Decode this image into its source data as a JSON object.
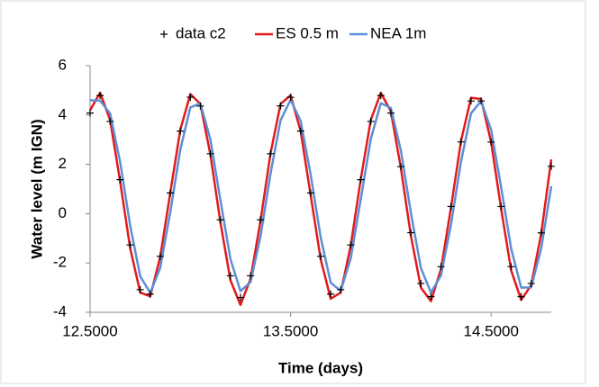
{
  "chart_data": {
    "type": "line",
    "x_label": "Time (days)",
    "y_label": "Water level (m IGN)",
    "xlim": [
      12.5,
      14.8
    ],
    "xticks": [
      {
        "value": 12.5,
        "label": "12.5000"
      },
      {
        "value": 13.5,
        "label": "13.5000"
      },
      {
        "value": 14.5,
        "label": "14.5000"
      }
    ],
    "ylim": [
      -4,
      6
    ],
    "yticks": [
      -4,
      -2,
      0,
      2,
      4,
      6
    ],
    "grid": false,
    "legend": "top",
    "x": [
      12.5,
      12.55,
      12.6,
      12.65,
      12.7,
      12.75,
      12.8,
      12.85,
      12.9,
      12.95,
      13,
      13.05,
      13.1,
      13.15,
      13.2,
      13.25,
      13.3,
      13.35,
      13.4,
      13.45,
      13.5,
      13.55,
      13.6,
      13.65,
      13.7,
      13.75,
      13.8,
      13.85,
      13.9,
      13.95,
      14,
      14.05,
      14.1,
      14.15,
      14.2,
      14.25,
      14.3,
      14.35,
      14.4,
      14.45,
      14.5,
      14.55,
      14.6,
      14.65,
      14.7,
      14.75,
      14.8
    ],
    "series": [
      {
        "name": "data c2",
        "color": "#000000",
        "style": "marker",
        "values": [
          4.08,
          4.79,
          3.74,
          1.38,
          -1.27,
          -3.08,
          -3.26,
          -1.73,
          0.84,
          3.35,
          4.72,
          4.36,
          2.43,
          -0.25,
          -2.52,
          -3.4,
          -2.52,
          -0.25,
          2.43,
          4.37,
          4.72,
          3.35,
          0.84,
          -1.73,
          -3.26,
          -3.08,
          -1.27,
          1.38,
          3.74,
          4.79,
          4.08,
          1.91,
          -0.77,
          -2.83,
          -3.36,
          -2.15,
          0.29,
          2.91,
          4.57,
          4.57,
          2.9,
          0.29,
          -2.15,
          -3.36,
          -2.83,
          -0.78,
          1.92
        ]
      },
      {
        "name": "ES 0.5 m",
        "color": "#e31a1c",
        "style": "line",
        "values": [
          4.2,
          4.9,
          3.8,
          1.3,
          -1.4,
          -3.2,
          -3.35,
          -1.75,
          0.85,
          3.4,
          4.85,
          4.45,
          2.4,
          -0.35,
          -2.7,
          -3.7,
          -2.65,
          -0.3,
          2.45,
          4.45,
          4.8,
          3.35,
          0.75,
          -1.85,
          -3.45,
          -3.2,
          -1.3,
          1.4,
          3.8,
          4.9,
          4.15,
          1.85,
          -0.9,
          -3.0,
          -3.55,
          -2.25,
          0.25,
          2.95,
          4.7,
          4.65,
          2.9,
          0.2,
          -2.3,
          -3.5,
          -2.9,
          -0.8,
          2.2
        ]
      },
      {
        "name": "NEA 1m",
        "color": "#5b8fd6",
        "style": "line",
        "values": [
          4.6,
          4.58,
          4.06,
          2.09,
          -0.48,
          -2.54,
          -3.21,
          -2.19,
          0.07,
          2.6,
          4.31,
          4.47,
          3.01,
          0.55,
          -1.84,
          -3.14,
          -2.78,
          -0.93,
          1.63,
          3.79,
          4.62,
          3.76,
          1.59,
          -0.96,
          -2.8,
          -3.13,
          -1.81,
          0.59,
          3.03,
          4.48,
          4.29,
          2.56,
          0.03,
          -2.21,
          -3.2,
          -2.51,
          -0.44,
          2.12,
          4.07,
          4.57,
          3.4,
          1.07,
          -1.42,
          -3.0,
          -2.99,
          -1.4,
          1.11
        ]
      }
    ]
  }
}
